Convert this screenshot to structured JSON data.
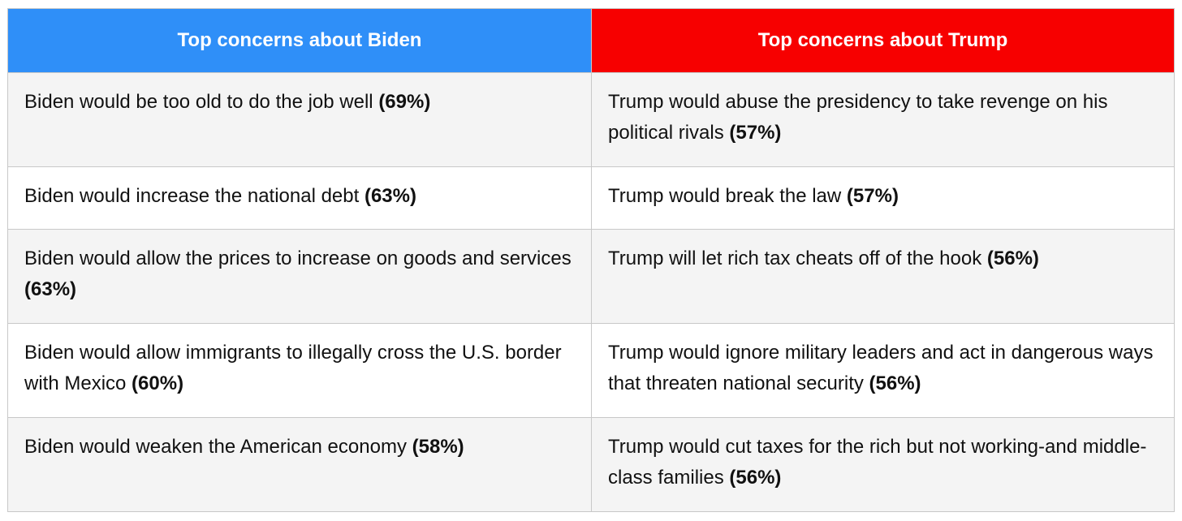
{
  "headers": {
    "biden": "Top concerns about Biden",
    "trump": "Top concerns about Trump"
  },
  "colors": {
    "biden_header": "#2f8ff8",
    "trump_header": "#f70000",
    "row_alt": "#f4f4f4",
    "border": "#c8c8c8"
  },
  "rows": [
    {
      "biden": {
        "text": "Biden would be too old to do the job well",
        "pct": "(69%)"
      },
      "trump": {
        "text": "Trump would abuse the presidency to take revenge on his political rivals",
        "pct": "(57%)"
      }
    },
    {
      "biden": {
        "text": "Biden would increase the national debt",
        "pct": "(63%)"
      },
      "trump": {
        "text": "Trump would break the law",
        "pct": "(57%)"
      }
    },
    {
      "biden": {
        "text": "Biden would allow the prices to increase on goods and services",
        "pct": "(63%)"
      },
      "trump": {
        "text": "Trump will let rich tax cheats off of the hook",
        "pct": "(56%)"
      }
    },
    {
      "biden": {
        "text": "Biden would allow immigrants to illegally cross the U.S. border with Mexico",
        "pct": "(60%)"
      },
      "trump": {
        "text": "Trump would ignore military leaders and act in dangerous ways that threaten national security",
        "pct": "(56%)"
      }
    },
    {
      "biden": {
        "text": "Biden would weaken the American economy",
        "pct": "(58%)"
      },
      "trump": {
        "text": "Trump would cut taxes for the rich but not working-and middle-class families",
        "pct": "(56%)"
      }
    }
  ]
}
